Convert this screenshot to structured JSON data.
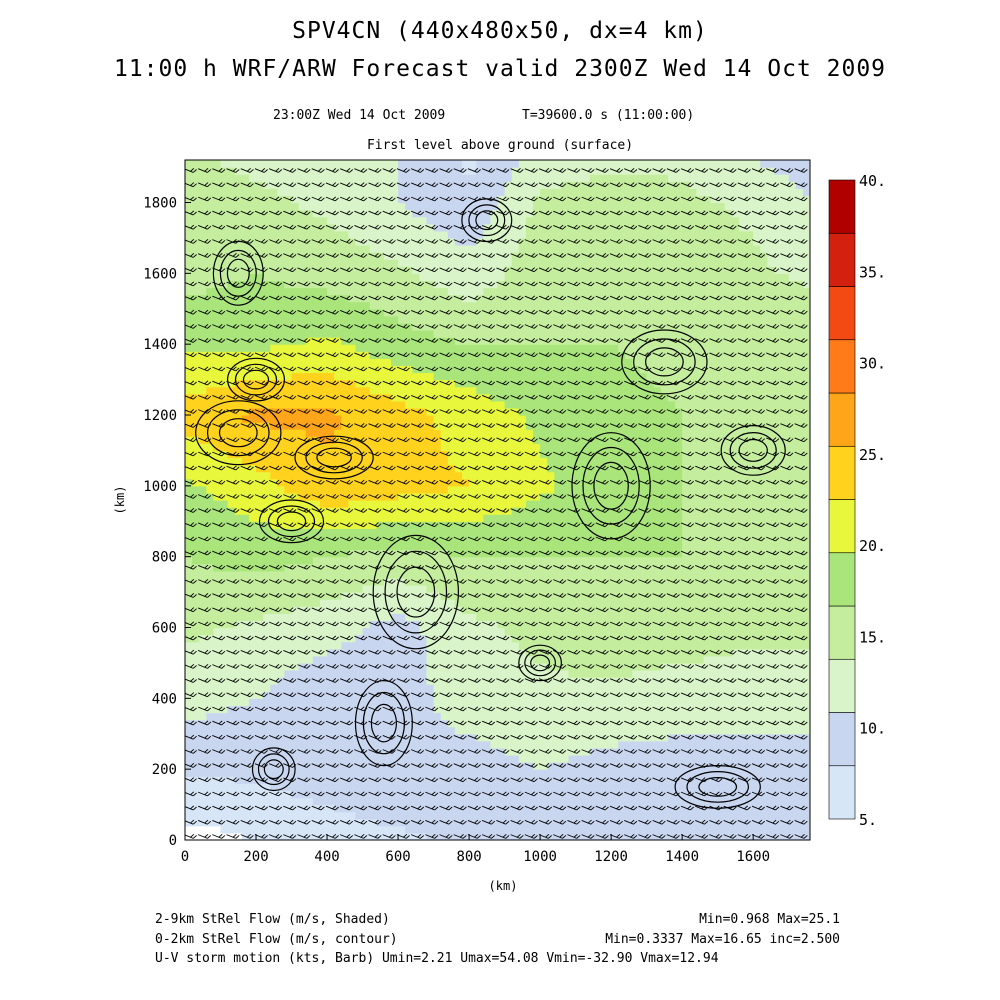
{
  "header": {
    "title_line1": "SPV4CN (440x480x50, dx=4 km)",
    "title_line2": "11:00 h WRF/ARW Forecast valid 2300Z Wed 14 Oct 2009",
    "valid_time": "23:00Z Wed 14 Oct 2009",
    "model_time": "T=39600.0 s (11:00:00)",
    "level": "First level above ground (surface)"
  },
  "footer": {
    "line1_left": "2-9km StRel Flow (m/s, Shaded)",
    "line1_right": "Min=0.968 Max=25.1",
    "line2_left": "0-2km StRel Flow (m/s, contour)",
    "line2_right": "Min=0.3337 Max=16.65 inc=2.500",
    "line3": "U-V storm motion (kts, Barb) Umin=2.21 Umax=54.08 Vmin=-32.90 Vmax=12.94"
  },
  "colors": {
    "levels": [
      "#d6e6f7",
      "#c9d6f0",
      "#d8f4c8",
      "#c4ee9e",
      "#a9e57a",
      "#e8f73b",
      "#ffd21e",
      "#ffa51a",
      "#ff7b1a",
      "#f24a12",
      "#d4200e",
      "#b00000"
    ]
  },
  "chart_data": {
    "type": "heatmap",
    "xlabel": "(km)",
    "ylabel": "(km)",
    "xlim": [
      0,
      1760
    ],
    "ylim": [
      0,
      1920
    ],
    "xticks": [
      0,
      200,
      400,
      600,
      800,
      1000,
      1200,
      1400,
      1600
    ],
    "yticks": [
      0,
      200,
      400,
      600,
      800,
      1000,
      1200,
      1400,
      1600,
      1800
    ],
    "colorbar": {
      "min": 5,
      "max": 40,
      "step": 2.5,
      "labels": [
        {
          "value": 5,
          "text": "5."
        },
        {
          "value": 10,
          "text": "10."
        },
        {
          "value": 15,
          "text": "15."
        },
        {
          "value": 20,
          "text": "20."
        },
        {
          "value": 25,
          "text": "25."
        },
        {
          "value": 30,
          "text": "30."
        },
        {
          "value": 35,
          "text": "35."
        },
        {
          "value": 40,
          "text": "40."
        }
      ]
    },
    "shaded_field": {
      "name": "2-9km StRel Flow",
      "units": "m/s",
      "min": 0.968,
      "max": 25.1,
      "grid_x": [
        0,
        200,
        400,
        600,
        800,
        1000,
        1200,
        1400,
        1600,
        1760
      ],
      "grid_y": [
        0,
        200,
        400,
        600,
        800,
        1000,
        1200,
        1400,
        1600,
        1800,
        1920
      ],
      "values": [
        [
          4,
          5,
          6,
          7,
          8,
          9,
          8,
          8,
          8,
          8
        ],
        [
          8,
          8,
          9,
          10,
          9,
          10,
          9,
          9,
          9,
          9
        ],
        [
          11,
          10,
          8,
          9,
          11,
          12,
          12,
          11,
          11,
          11
        ],
        [
          13,
          12,
          11,
          9,
          12,
          13,
          14,
          14,
          13,
          13
        ],
        [
          15,
          16,
          15,
          14,
          15,
          15,
          15,
          15,
          14,
          14
        ],
        [
          17,
          19,
          22,
          21,
          20,
          18,
          16,
          15,
          14,
          14
        ],
        [
          21,
          23,
          23,
          21,
          19,
          17,
          16,
          15,
          15,
          15
        ],
        [
          17,
          17,
          18,
          16,
          15,
          15,
          15,
          14,
          14,
          15
        ],
        [
          14,
          15,
          14,
          13,
          11,
          14,
          14,
          14,
          13,
          12
        ],
        [
          13,
          13,
          12,
          10,
          8,
          13,
          14,
          13,
          12,
          10
        ],
        [
          13,
          12,
          12,
          10,
          7,
          11,
          12,
          12,
          10,
          9
        ]
      ]
    },
    "contour_field": {
      "name": "0-2km StRel Flow",
      "units": "m/s",
      "min": 0.3337,
      "max": 16.65,
      "inc": 2.5
    },
    "barbs": {
      "name": "U-V storm motion",
      "units": "kts",
      "umin": 2.21,
      "umax": 54.08,
      "vmin": -32.9,
      "vmax": 12.94
    }
  }
}
